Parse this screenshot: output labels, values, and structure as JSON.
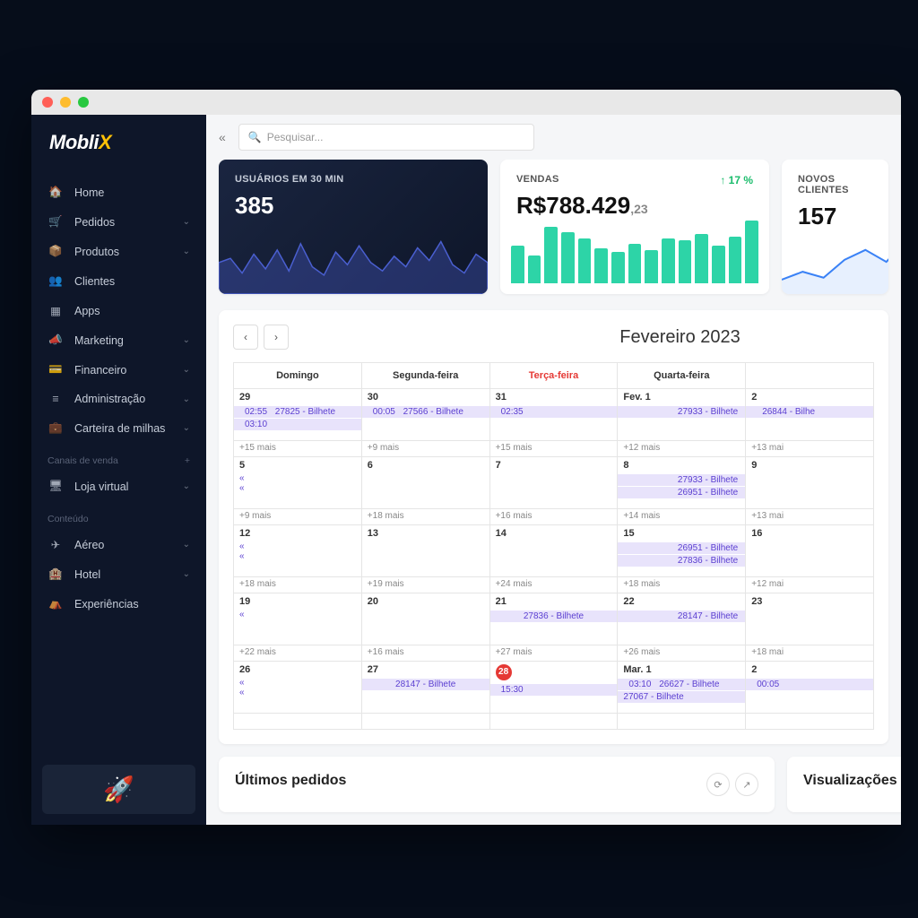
{
  "window": {
    "bg": "#060d1a"
  },
  "logo": {
    "text": "Mobli",
    "accent": "X"
  },
  "search": {
    "placeholder": "Pesquisar..."
  },
  "nav": {
    "items": [
      {
        "icon": "🏠",
        "label": "Home",
        "expand": false
      },
      {
        "icon": "🛒",
        "label": "Pedidos",
        "expand": true
      },
      {
        "icon": "📦",
        "label": "Produtos",
        "expand": true
      },
      {
        "icon": "👥",
        "label": "Clientes",
        "expand": false
      },
      {
        "icon": "▦",
        "label": "Apps",
        "expand": false
      },
      {
        "icon": "📣",
        "label": "Marketing",
        "expand": true
      },
      {
        "icon": "💳",
        "label": "Financeiro",
        "expand": true
      },
      {
        "icon": "≡",
        "label": "Administração",
        "expand": true
      },
      {
        "icon": "💼",
        "label": "Carteira de milhas",
        "expand": true
      }
    ],
    "section1": {
      "label": "Canais de venda",
      "items": [
        {
          "icon": "🖥",
          "label": "Loja virtual",
          "expand": true
        }
      ]
    },
    "section2": {
      "label": "Conteúdo",
      "items": [
        {
          "icon": "✈",
          "label": "Aéreo",
          "expand": true
        },
        {
          "icon": "🏨",
          "label": "Hotel",
          "expand": true
        },
        {
          "icon": "⛺",
          "label": "Experiências",
          "expand": false
        }
      ]
    }
  },
  "cards": {
    "users": {
      "title": "USUÁRIOS EM 30 MIN",
      "value": "385",
      "spark_color": "#4a5fd0",
      "spark_points": [
        30,
        34,
        20,
        38,
        24,
        42,
        22,
        48,
        26,
        18,
        40,
        28,
        46,
        30,
        22,
        36,
        26,
        44,
        32,
        50,
        28,
        20,
        38,
        30
      ]
    },
    "sales": {
      "title": "VENDAS",
      "value": "R$788.429",
      "cents": ",23",
      "pct": "↑ 17 %",
      "bar_color": "#2dd4a7",
      "bars": [
        38,
        28,
        58,
        52,
        46,
        36,
        32,
        40,
        34,
        46,
        44,
        50,
        38,
        48,
        64
      ]
    },
    "clients": {
      "title": "NOVOS CLIENTES",
      "value": "157",
      "line_color": "#3b82f6",
      "line_points": [
        10,
        18,
        12,
        30,
        40,
        28,
        50
      ]
    }
  },
  "calendar": {
    "title": "Fevereiro 2023",
    "days": [
      "Domingo",
      "Segunda-feira",
      "Terça-feira",
      "Quarta-feira",
      ""
    ],
    "today_col": 2,
    "rows": [
      {
        "nums": [
          "29",
          "30",
          "31",
          "Fev. 1",
          "2"
        ],
        "events": [
          [
            {
              "t": "02:55",
              "txt": "27825 - Bilhete"
            },
            {
              "t": "03:10",
              "txt": ""
            }
          ],
          [
            {
              "t": "00:05",
              "txt": "27566 - Bilhete"
            }
          ],
          [
            {
              "t": "02:35",
              "txt": ""
            }
          ],
          [
            {
              "span": "27933 - Bilhete",
              "right": true
            }
          ],
          [
            {
              "t": "",
              "txt": "26844 - Bilhe"
            }
          ]
        ],
        "more": [
          "+15 mais",
          "+9 mais",
          "+15 mais",
          "+12 mais",
          "+13 mai"
        ]
      },
      {
        "nums": [
          "5",
          "6",
          "7",
          "8",
          "9"
        ],
        "events": [
          [
            {
              "cont": "«"
            },
            {
              "cont": "«"
            }
          ],
          [],
          [],
          [
            {
              "span": "27933 - Bilhete",
              "right": true
            },
            {
              "span": "26951 - Bilhete",
              "right": true
            }
          ],
          []
        ],
        "more": [
          "+9 mais",
          "+18 mais",
          "+16 mais",
          "+14 mais",
          "+13 mai"
        ]
      },
      {
        "nums": [
          "12",
          "13",
          "14",
          "15",
          "16"
        ],
        "events": [
          [
            {
              "cont": "«"
            },
            {
              "cont": "«"
            }
          ],
          [],
          [],
          [
            {
              "span": "26951 - Bilhete",
              "right": true
            },
            {
              "span": "27836 - Bilhete",
              "right": true
            }
          ],
          []
        ],
        "more": [
          "+18 mais",
          "+19 mais",
          "+24 mais",
          "+18 mais",
          "+12 mai"
        ]
      },
      {
        "nums": [
          "19",
          "20",
          "21",
          "22",
          "23"
        ],
        "events": [
          [
            {
              "cont": "«"
            }
          ],
          [],
          [
            {
              "span": "27836 - Bilhete",
              "mid": true
            }
          ],
          [
            {
              "span": "28147 - Bilhete",
              "right": true
            }
          ],
          []
        ],
        "more": [
          "+22 mais",
          "+16 mais",
          "+27 mais",
          "+26 mais",
          "+18 mai"
        ]
      },
      {
        "nums": [
          "26",
          "27",
          "28",
          "Mar. 1",
          "2"
        ],
        "today": 2,
        "events": [
          [
            {
              "cont": "«"
            },
            {
              "cont": "«"
            }
          ],
          [
            {
              "span": "28147 - Bilhete",
              "mid": true
            }
          ],
          [
            {
              "t": "15:30",
              "right": true
            }
          ],
          [
            {
              "t": "03:10",
              "txt": "26627 - Bilhete"
            },
            {
              "span": "27067 - Bilhete"
            }
          ],
          [
            {
              "t": "00:05",
              "right": true
            }
          ]
        ],
        "more": [
          "",
          "",
          "",
          "",
          ""
        ]
      }
    ]
  },
  "bottom": {
    "orders": "Últimos pedidos",
    "views": "Visualizações"
  }
}
